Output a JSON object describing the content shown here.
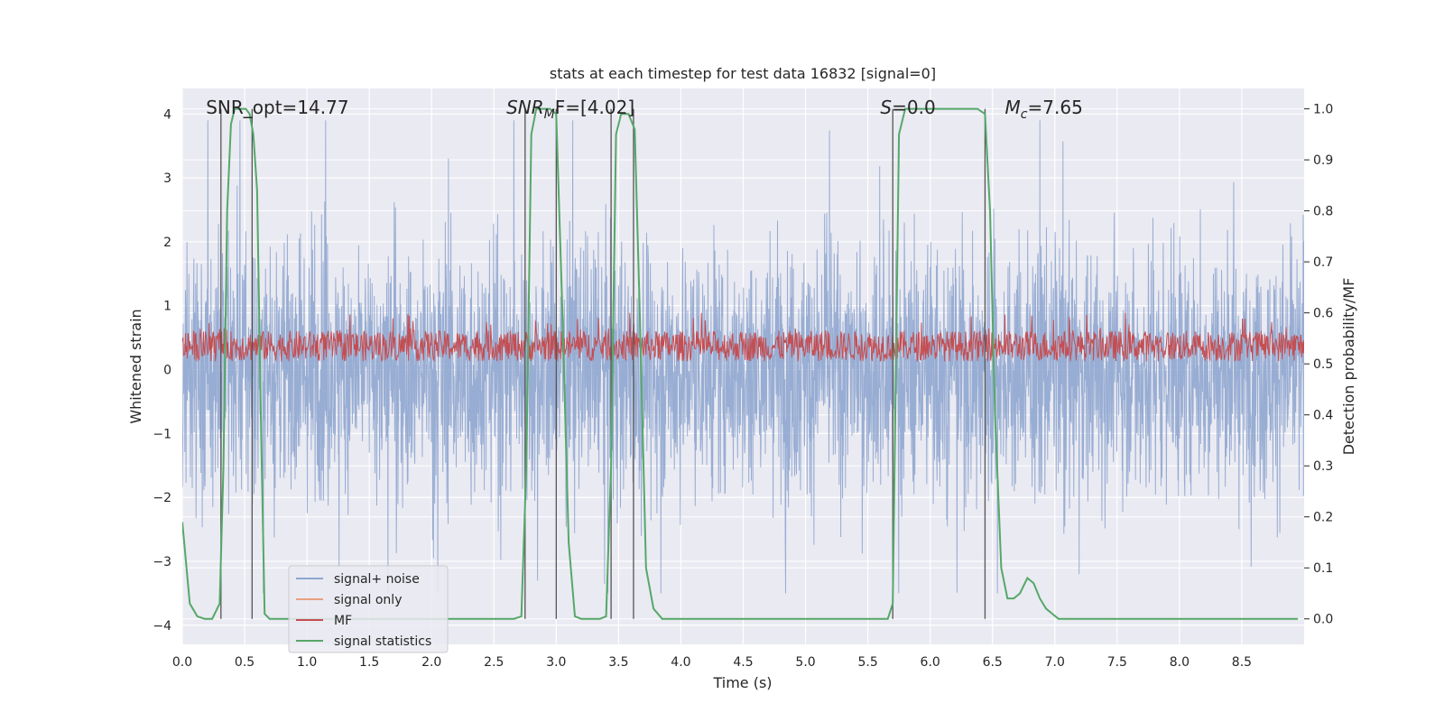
{
  "chart_data": {
    "type": "line",
    "title": "stats at each timestep for test data 16832 [signal=0]",
    "xlabel": "Time (s)",
    "ylabel": "Whitened strain",
    "y2label": "Detection probability/MF",
    "xlim": [
      0,
      9
    ],
    "ylim": [
      -4.3,
      4.4
    ],
    "y2lim": [
      -0.05,
      1.04
    ],
    "xticks": [
      0.0,
      0.5,
      1.0,
      1.5,
      2.0,
      2.5,
      3.0,
      3.5,
      4.0,
      4.5,
      5.0,
      5.5,
      6.0,
      6.5,
      7.0,
      7.5,
      8.0,
      8.5
    ],
    "xtick_labels": [
      "0.0",
      "0.5",
      "1.0",
      "1.5",
      "2.0",
      "2.5",
      "3.0",
      "3.5",
      "4.0",
      "4.5",
      "5.0",
      "5.5",
      "6.0",
      "6.5",
      "7.0",
      "7.5",
      "8.0",
      "8.5"
    ],
    "yticks": [
      -4,
      -3,
      -2,
      -1,
      0,
      1,
      2,
      3,
      4
    ],
    "ytick_labels": [
      "−4",
      "−3",
      "−2",
      "−1",
      "0",
      "1",
      "2",
      "3",
      "4"
    ],
    "y2ticks": [
      0.0,
      0.1,
      0.2,
      0.3,
      0.4,
      0.5,
      0.6,
      0.7,
      0.8,
      0.9,
      1.0
    ],
    "y2tick_labels": [
      "0.0",
      "0.1",
      "0.2",
      "0.3",
      "0.4",
      "0.5",
      "0.6",
      "0.7",
      "0.8",
      "0.9",
      "1.0"
    ],
    "grid": true,
    "legend_position": "lower-left",
    "colors": {
      "noise": "#8fa6cf",
      "signal": "#e8a07e",
      "mf": "#c44e52",
      "stats": "#55a868",
      "vline": "#555555",
      "background": "#eaeaf2",
      "grid": "#ffffff"
    },
    "series": [
      {
        "name": "signal+ noise",
        "axis": "left",
        "description": "whitened strain noise fluctuating roughly between -3.5 and 3.9"
      },
      {
        "name": "signal only",
        "axis": "left",
        "values": []
      },
      {
        "name": "MF",
        "axis": "right",
        "description": "matched filter output fluctuating roughly between 0.5 and 0.6"
      },
      {
        "name": "signal statistics",
        "axis": "right",
        "x": [
          0.0,
          0.06,
          0.12,
          0.18,
          0.24,
          0.3,
          0.33,
          0.36,
          0.39,
          0.42,
          0.45,
          0.48,
          0.51,
          0.54,
          0.57,
          0.6,
          0.63,
          0.66,
          0.7,
          0.75,
          0.8,
          1.0,
          2.0,
          2.5,
          2.6,
          2.66,
          2.72,
          2.76,
          2.8,
          2.84,
          2.9,
          2.95,
          3.0,
          3.05,
          3.1,
          3.15,
          3.2,
          3.3,
          3.35,
          3.4,
          3.44,
          3.48,
          3.52,
          3.58,
          3.63,
          3.67,
          3.72,
          3.78,
          3.85,
          4.0,
          5.0,
          5.6,
          5.66,
          5.7,
          5.72,
          5.75,
          5.8,
          6.0,
          6.2,
          6.38,
          6.44,
          6.48,
          6.52,
          6.57,
          6.62,
          6.67,
          6.72,
          6.78,
          6.83,
          6.88,
          6.93,
          6.98,
          7.03,
          7.1,
          7.5,
          8.5,
          8.95
        ],
        "y": [
          0.19,
          0.03,
          0.005,
          0.0,
          0.0,
          0.03,
          0.3,
          0.8,
          0.97,
          1.0,
          1.0,
          1.0,
          1.0,
          0.99,
          0.95,
          0.84,
          0.4,
          0.01,
          0.0,
          0.0,
          0.0,
          0.0,
          0.0,
          0.0,
          0.0,
          0.0,
          0.005,
          0.3,
          0.95,
          1.0,
          1.0,
          1.0,
          0.99,
          0.6,
          0.15,
          0.005,
          0.0,
          0.0,
          0.0,
          0.005,
          0.3,
          0.95,
          0.99,
          0.99,
          0.96,
          0.6,
          0.1,
          0.02,
          0.0,
          0.0,
          0.0,
          0.0,
          0.0,
          0.03,
          0.4,
          0.95,
          1.0,
          1.0,
          1.0,
          1.0,
          0.99,
          0.8,
          0.4,
          0.1,
          0.04,
          0.04,
          0.05,
          0.08,
          0.07,
          0.04,
          0.02,
          0.01,
          0.0,
          0.0,
          0.0,
          0.0,
          0.0
        ]
      }
    ],
    "vlines": [
      0.31,
      0.56,
      2.75,
      3.0,
      3.44,
      3.62,
      5.7,
      6.44
    ],
    "annotations": [
      {
        "text": "SNR_opt=14.77",
        "x": 0.19,
        "y": 4.1
      },
      {
        "text": "SNR",
        "sub": "M",
        "suffix": "F=[4.02]",
        "x": 2.6,
        "y": 4.1
      },
      {
        "text": "S",
        "suffix": "=0.0",
        "x": 5.6,
        "y": 4.1
      },
      {
        "text": "M",
        "sub": "c",
        "suffix": "=7.65",
        "x": 6.6,
        "y": 4.1
      }
    ]
  }
}
